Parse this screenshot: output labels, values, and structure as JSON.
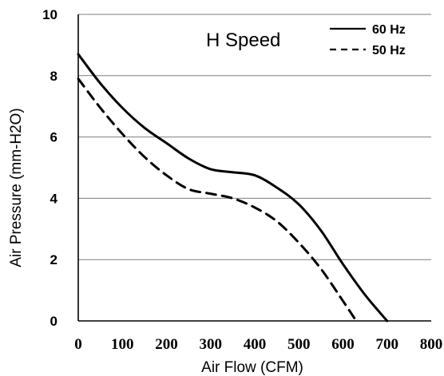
{
  "chart_data": {
    "type": "line",
    "xlabel": "Air Flow (CFM)",
    "ylabel": "Air Pressure (mm-H2O)",
    "xlim": [
      0,
      800
    ],
    "ylim": [
      0,
      10
    ],
    "x_ticks": [
      0,
      100,
      200,
      300,
      400,
      500,
      600,
      700,
      800
    ],
    "y_ticks": [
      0,
      2,
      4,
      6,
      8,
      10
    ],
    "grid": "horizontal",
    "legend_position": "top-right",
    "annotation": "H Speed",
    "series": [
      {
        "name": "60 Hz",
        "style": "solid",
        "x": [
          0,
          50,
          100,
          150,
          200,
          250,
          300,
          350,
          400,
          450,
          500,
          550,
          600,
          650,
          700
        ],
        "y": [
          8.7,
          7.75,
          6.95,
          6.3,
          5.8,
          5.3,
          4.95,
          4.85,
          4.75,
          4.35,
          3.8,
          2.95,
          1.85,
          0.85,
          0.0
        ]
      },
      {
        "name": "50 Hz",
        "style": "dashed",
        "x": [
          0,
          50,
          100,
          150,
          200,
          250,
          300,
          350,
          400,
          450,
          500,
          550,
          600,
          630
        ],
        "y": [
          7.9,
          6.95,
          6.1,
          5.35,
          4.75,
          4.3,
          4.15,
          4.0,
          3.7,
          3.25,
          2.55,
          1.7,
          0.65,
          0.0
        ]
      }
    ]
  }
}
